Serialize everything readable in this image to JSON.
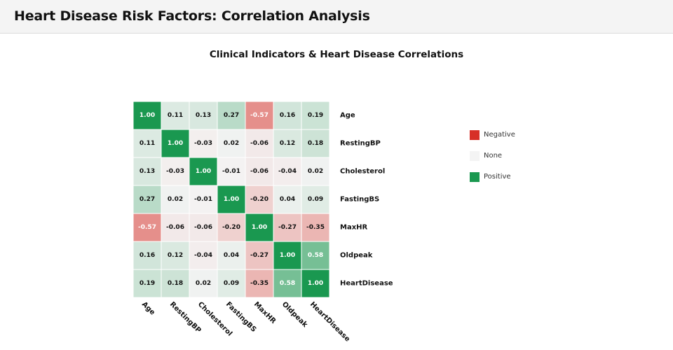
{
  "header": {
    "title": "Heart Disease Risk Factors: Correlation Analysis"
  },
  "legend": {
    "items": [
      {
        "label": "Negative",
        "color": "#d73027"
      },
      {
        "label": "None",
        "color": "#f4f4f4"
      },
      {
        "label": "Positive",
        "color": "#1a9850"
      }
    ]
  },
  "chart_data": {
    "type": "heatmap",
    "title": "Clinical Indicators & Heart Disease Correlations",
    "x_labels": [
      "Age",
      "RestingBP",
      "Cholesterol",
      "FastingBS",
      "MaxHR",
      "Oldpeak",
      "HeartDisease"
    ],
    "y_labels": [
      "Age",
      "RestingBP",
      "Cholesterol",
      "FastingBS",
      "MaxHR",
      "Oldpeak",
      "HeartDisease"
    ],
    "values": [
      [
        1.0,
        0.11,
        0.13,
        0.27,
        -0.57,
        0.16,
        0.19
      ],
      [
        0.11,
        1.0,
        -0.03,
        0.02,
        -0.06,
        0.12,
        0.18
      ],
      [
        0.13,
        -0.03,
        1.0,
        -0.01,
        -0.06,
        -0.04,
        0.02
      ],
      [
        0.27,
        0.02,
        -0.01,
        1.0,
        -0.2,
        0.04,
        0.09
      ],
      [
        -0.57,
        -0.06,
        -0.06,
        -0.2,
        1.0,
        -0.27,
        -0.35
      ],
      [
        0.16,
        0.12,
        -0.04,
        0.04,
        -0.27,
        1.0,
        0.58
      ],
      [
        0.19,
        0.18,
        0.02,
        0.09,
        -0.35,
        0.58,
        1.0
      ]
    ],
    "value_range": [
      -1,
      1
    ],
    "color_scale": {
      "negative": "#d73027",
      "neutral": "#f4f4f4",
      "positive": "#1a9850"
    },
    "legend_position": "right",
    "row_labels_position": "right",
    "column_labels_position": "bottom-rotated"
  }
}
